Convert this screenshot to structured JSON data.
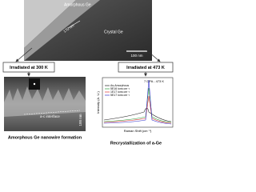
{
  "top_image": {
    "label_phase": "Amorphous Ge",
    "label_thickness": "170 nm",
    "label_crystal": "Crystal Ge",
    "scale_bar": "100 nm"
  },
  "left_branch": {
    "condition": "Irradiated at 300 K",
    "interface": "a-c interface",
    "scale_bar": "100 nm",
    "caption": "Amorphous Ge nanowire formation"
  },
  "right_branch": {
    "condition": "Irradiated at 473 K",
    "plot_title": "7 DPA - 473 K",
    "x_label": "Raman Shift (cm⁻¹)",
    "y_label": "Intensity (A. U.)",
    "legend": [
      "As-Amorphous",
      "5E16 ions cm⁻²",
      "1E17 ions cm⁻²",
      "5E17 ions cm⁻²"
    ],
    "caption": "Recrystallization of a-Ge"
  }
}
